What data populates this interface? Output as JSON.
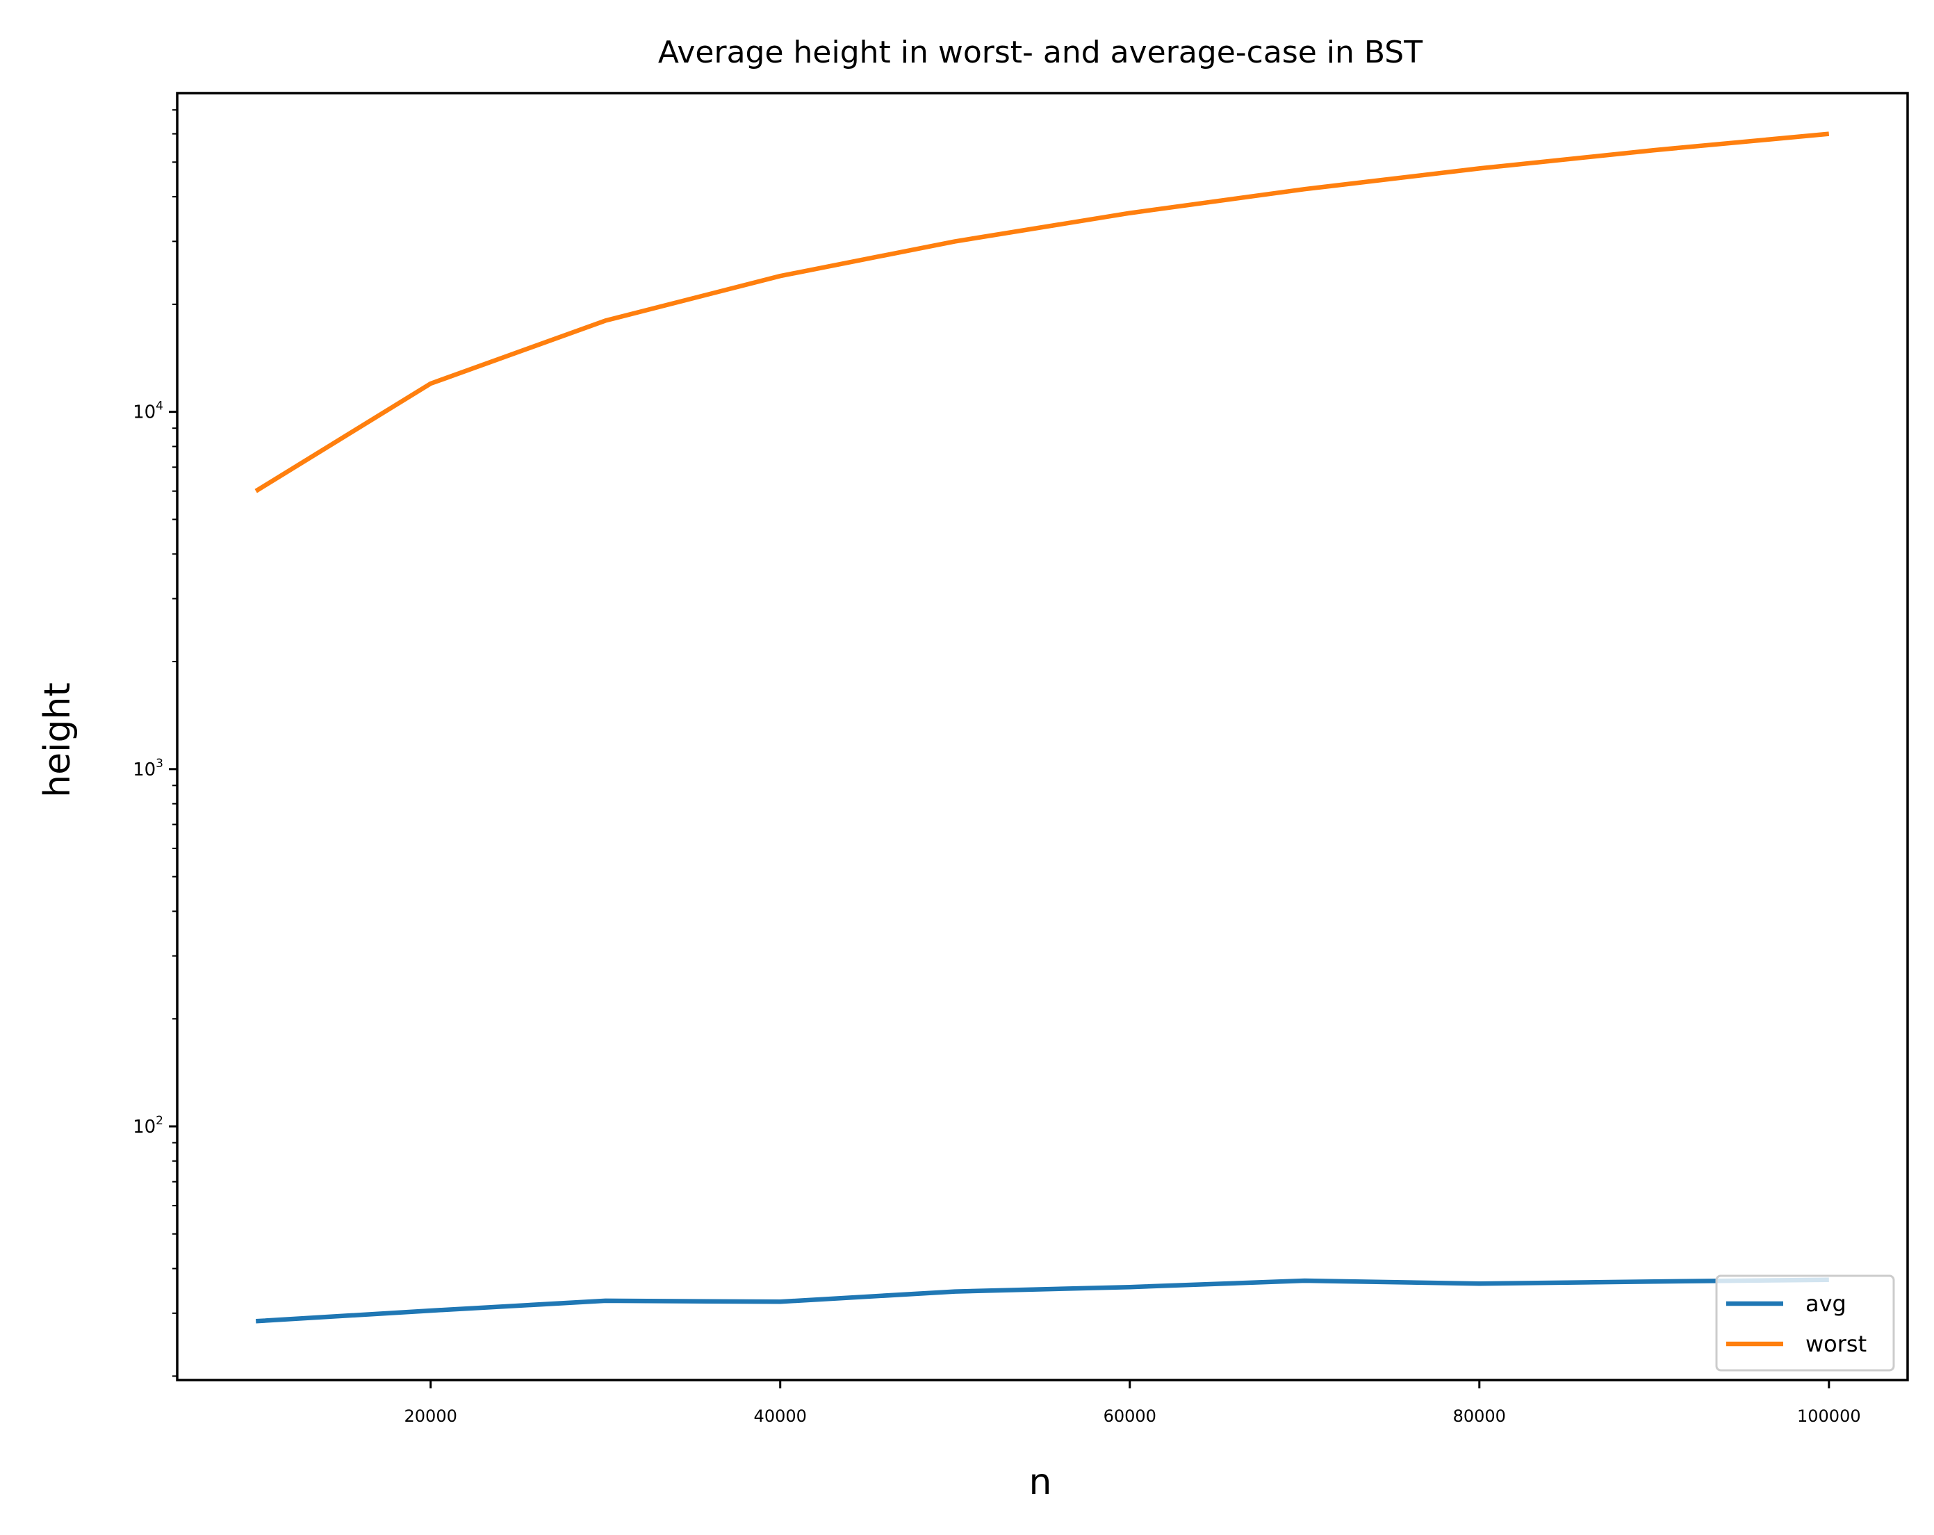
{
  "chart_data": {
    "type": "line",
    "title": "Average height in worst- and average-case in BST",
    "xlabel": "n",
    "ylabel": "height",
    "yscale": "log",
    "xlim": [
      5500,
      104500
    ],
    "ylim": [
      19.5,
      78000
    ],
    "x_ticks": [
      20000,
      40000,
      60000,
      80000,
      100000
    ],
    "y_ticks": [
      {
        "value": 100,
        "base": "10",
        "exp": "2"
      },
      {
        "value": 1000,
        "base": "10",
        "exp": "3"
      },
      {
        "value": 10000,
        "base": "10",
        "exp": "4"
      }
    ],
    "x": [
      10000,
      20000,
      30000,
      40000,
      50000,
      60000,
      70000,
      80000,
      90000,
      100000
    ],
    "series": [
      {
        "name": "avg",
        "color": "#1f77b4",
        "values": [
          28.5,
          30.5,
          32.5,
          32.3,
          34.5,
          35.5,
          37.0,
          36.3,
          36.8,
          37.2
        ]
      },
      {
        "name": "worst",
        "color": "#ff7f0e",
        "values": [
          6000,
          12000,
          18000,
          24000,
          30000,
          36000,
          42000,
          48000,
          54000,
          60000
        ]
      }
    ],
    "grid": false,
    "legend_position": "lower-right"
  }
}
